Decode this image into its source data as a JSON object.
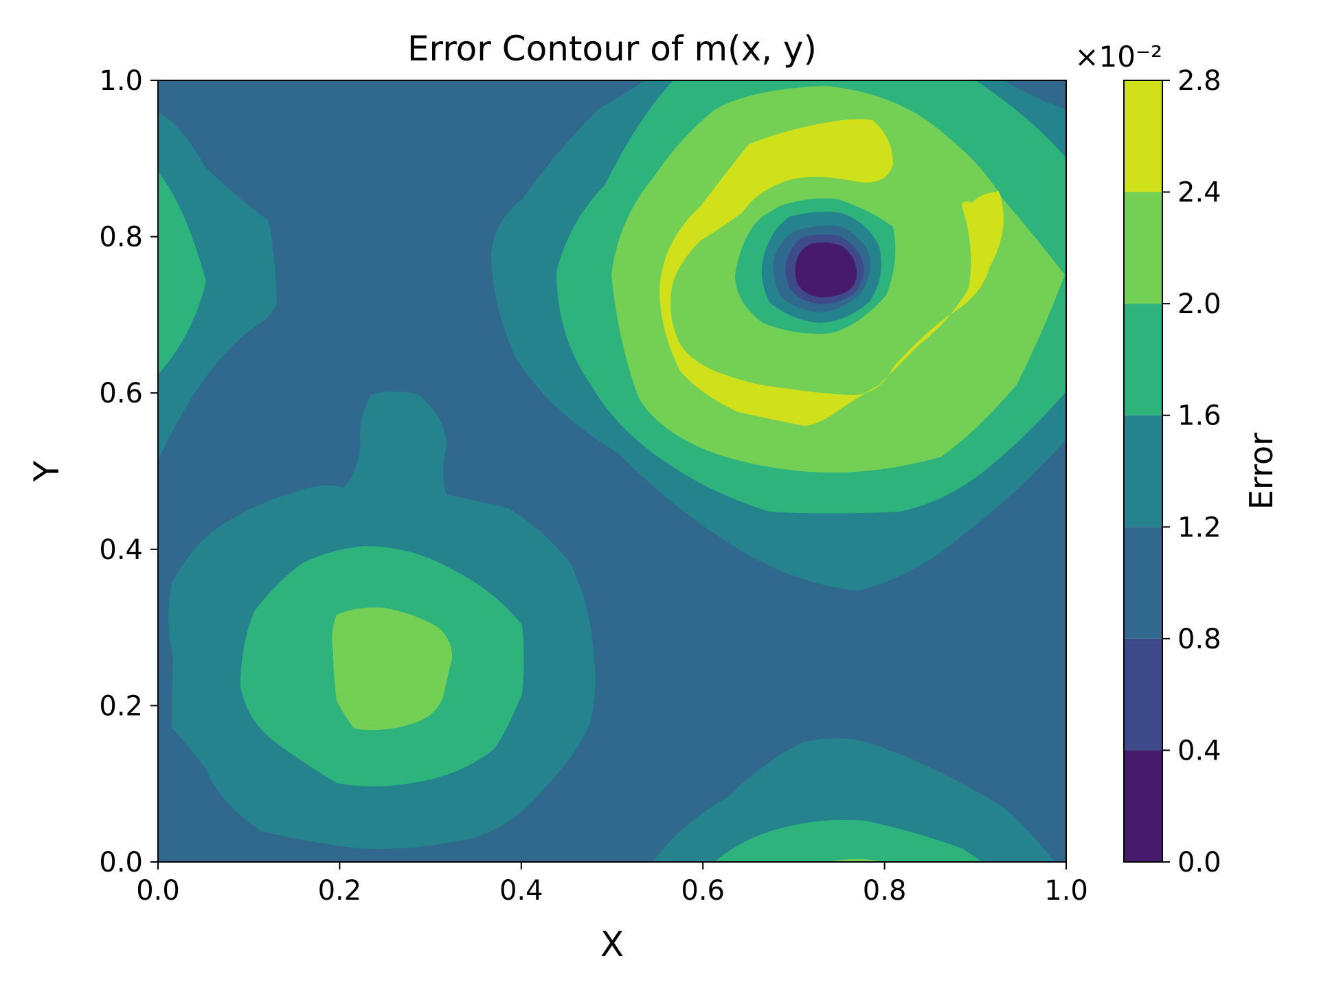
{
  "chart_data": {
    "type": "contour",
    "title": "Error Contour of m(x, y)",
    "xlabel": "X",
    "ylabel": "Y",
    "xlim": [
      0.0,
      1.0
    ],
    "ylim": [
      0.0,
      1.0
    ],
    "x_ticks": [
      "0.0",
      "0.2",
      "0.4",
      "0.6",
      "0.8",
      "1.0"
    ],
    "y_ticks": [
      "0.0",
      "0.2",
      "0.4",
      "0.6",
      "0.8",
      "1.0"
    ],
    "colorbar": {
      "label": "Error",
      "multiplier": "×10⁻²",
      "ticks": [
        "0.0",
        "0.4",
        "0.8",
        "1.2",
        "1.6",
        "2.0",
        "2.4",
        "2.8"
      ],
      "levels": [
        0.0,
        0.4,
        0.8,
        1.2,
        1.6,
        2.0,
        2.4,
        2.8
      ],
      "colors": [
        "#481a6c",
        "#3e4a89",
        "#31688e",
        "#25838e",
        "#2eb37c",
        "#74d055",
        "#d0e11c"
      ]
    },
    "features": [
      {
        "kind": "minimum",
        "x": 0.75,
        "y": 0.75,
        "value": 0.2
      },
      {
        "kind": "ring-maximum",
        "center_x": 0.75,
        "center_y": 0.75,
        "value": 2.6
      },
      {
        "kind": "maximum",
        "x": 0.25,
        "y": 0.25,
        "value": 2.1
      },
      {
        "kind": "maximum",
        "x": 0.0,
        "y": 0.75,
        "value": 1.7
      },
      {
        "kind": "maximum",
        "x": 0.75,
        "y": 0.0,
        "value": 2.0
      }
    ],
    "grid": false
  }
}
